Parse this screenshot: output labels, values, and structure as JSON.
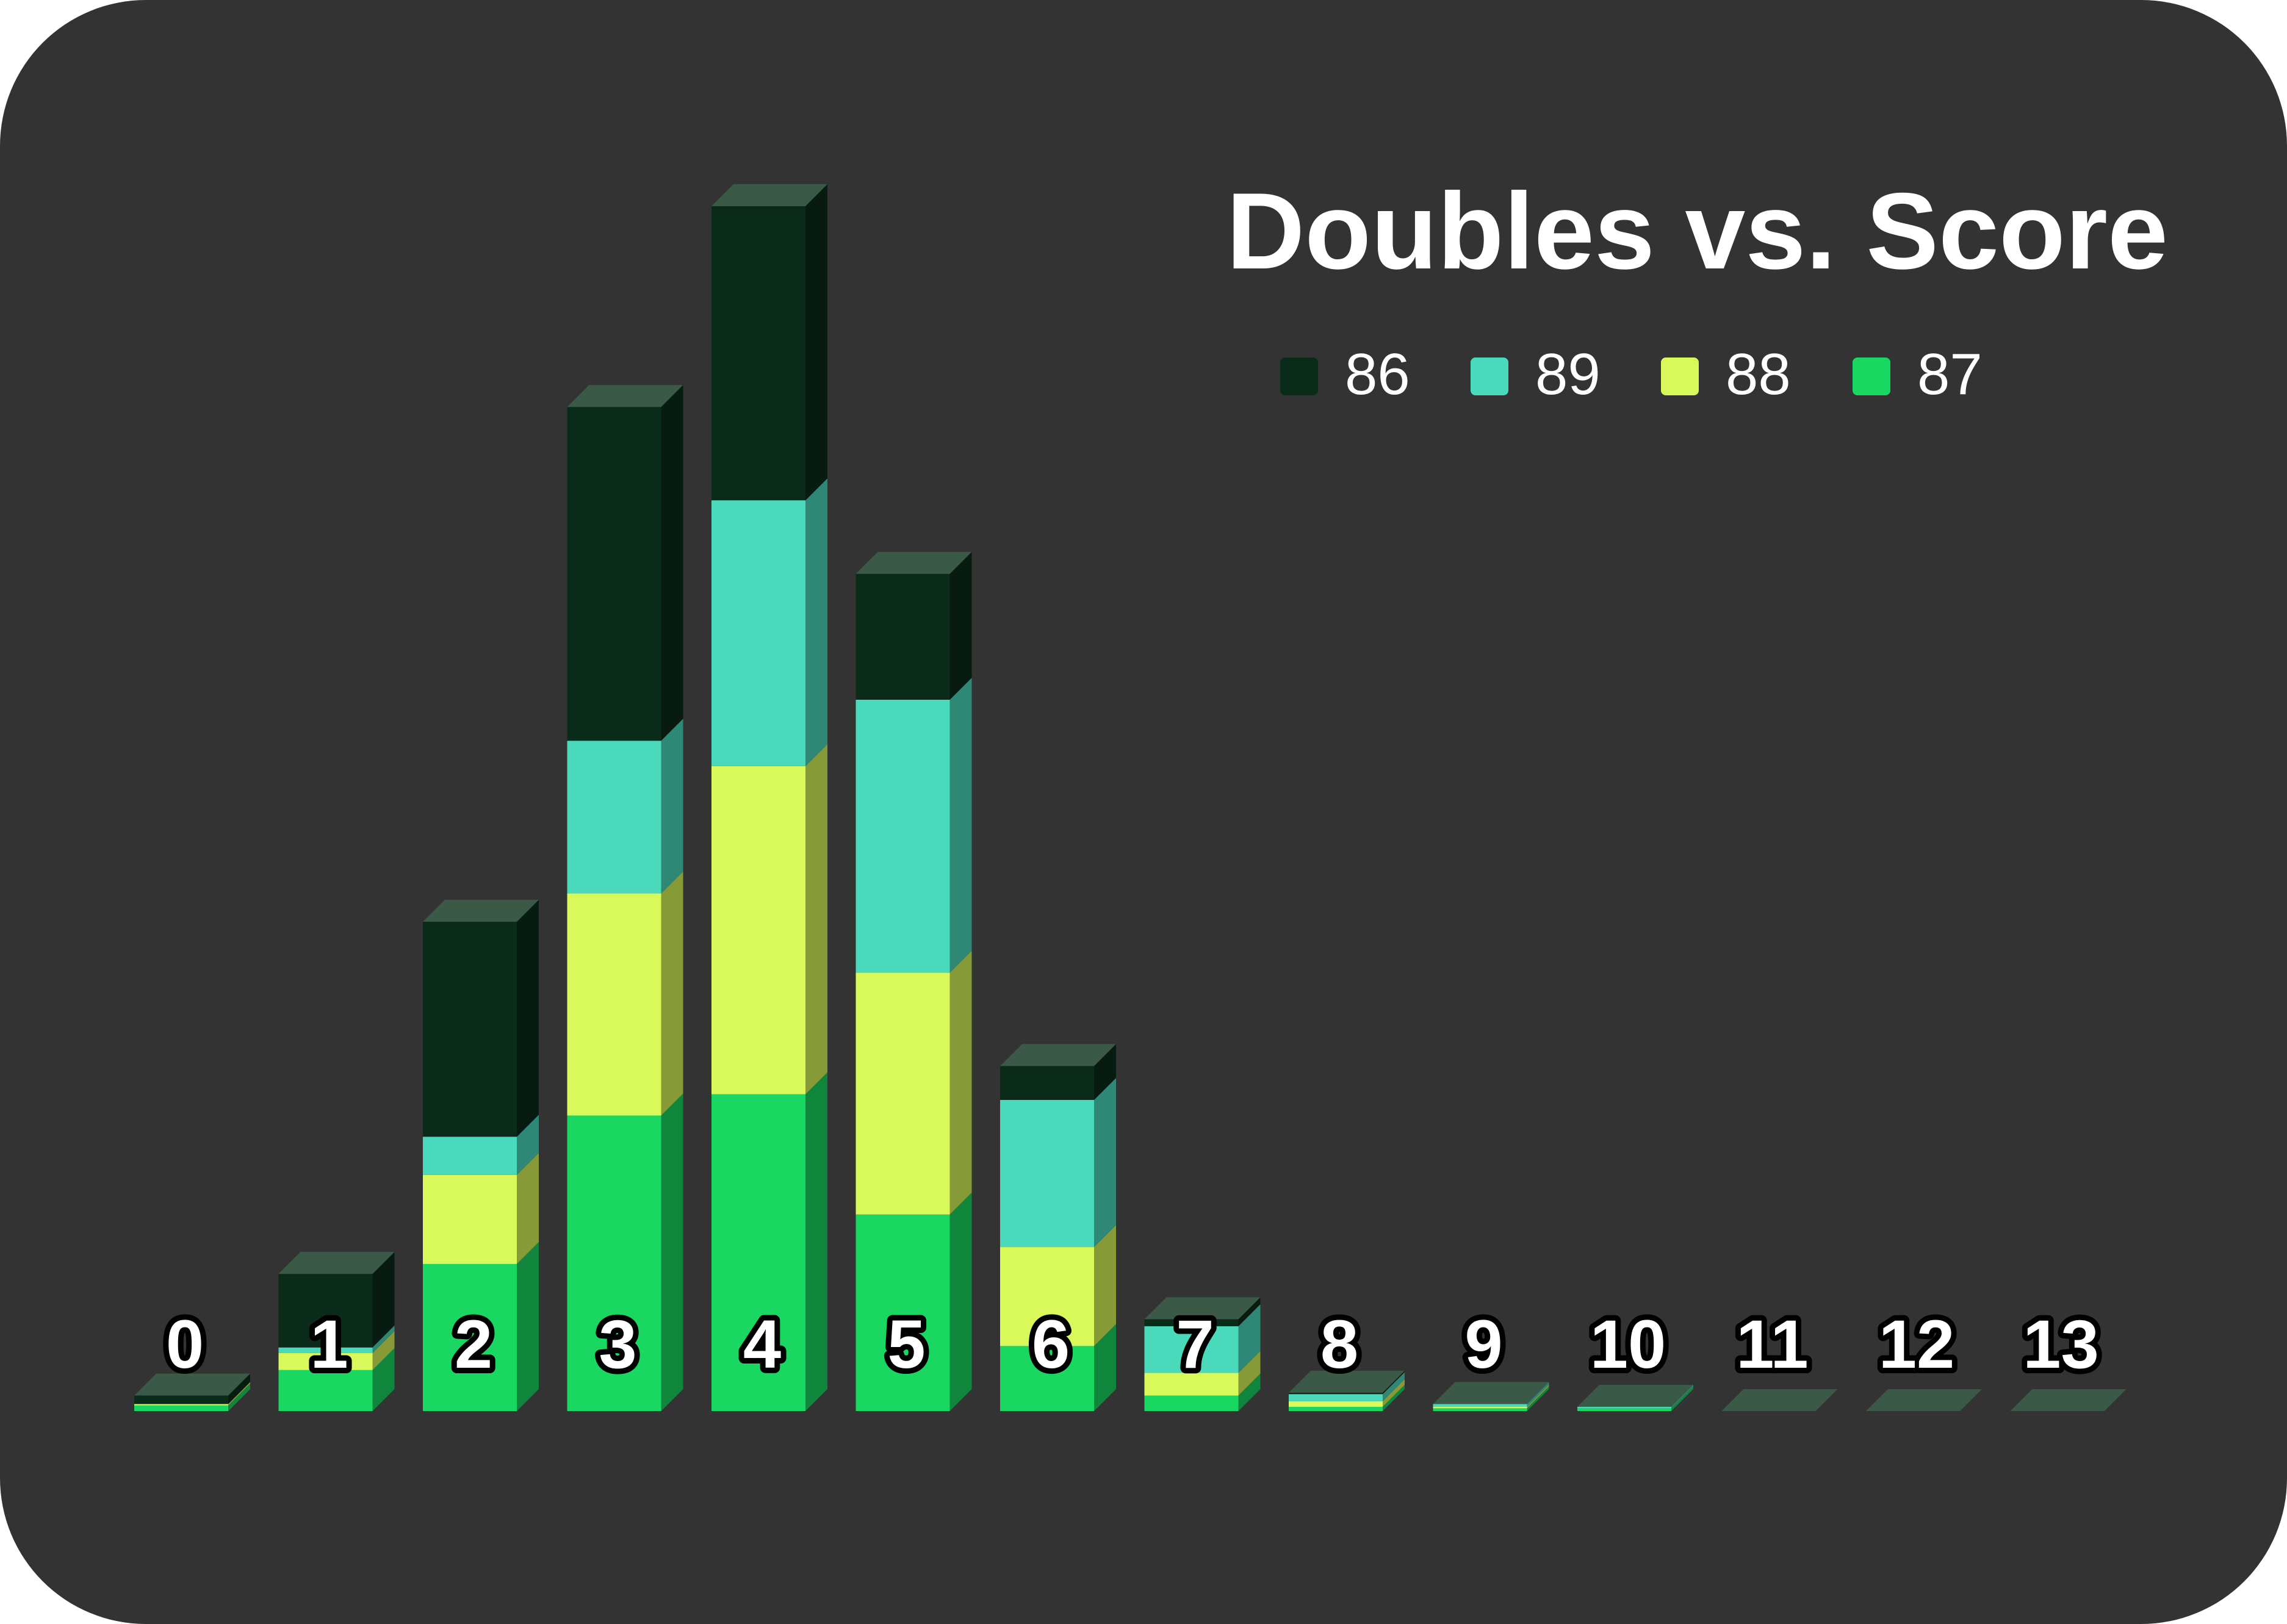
{
  "chart_data": {
    "type": "bar",
    "stacked": true,
    "three_d": true,
    "title": "Doubles vs. Score",
    "categories": [
      "0",
      "1",
      "2",
      "3",
      "4",
      "5",
      "6",
      "7",
      "8",
      "9",
      "10",
      "11",
      "12",
      "13"
    ],
    "series": [
      {
        "name": "87",
        "color": "#19d761",
        "values": [
          4,
          29,
          104,
          209,
          224,
          139,
          46,
          11,
          3,
          2,
          2,
          0,
          0,
          0
        ]
      },
      {
        "name": "88",
        "color": "#d9f95a",
        "values": [
          1,
          12,
          63,
          157,
          232,
          171,
          70,
          16,
          4,
          1,
          0,
          0,
          0,
          0
        ]
      },
      {
        "name": "89",
        "color": "#4bd9bc",
        "values": [
          0,
          4,
          27,
          108,
          188,
          193,
          104,
          33,
          5,
          2,
          1,
          0,
          0,
          0
        ]
      },
      {
        "name": "86",
        "color": "#0b2b1a",
        "values": [
          6,
          52,
          152,
          236,
          208,
          89,
          24,
          5,
          1,
          0,
          0,
          0,
          0,
          0
        ]
      }
    ],
    "legend_order": [
      "86",
      "89",
      "88",
      "87"
    ],
    "legend_position": "top-right",
    "grid": false,
    "background": "#333333",
    "empty_top_color": "#3a5a47",
    "ylim": [
      0,
      880
    ]
  }
}
